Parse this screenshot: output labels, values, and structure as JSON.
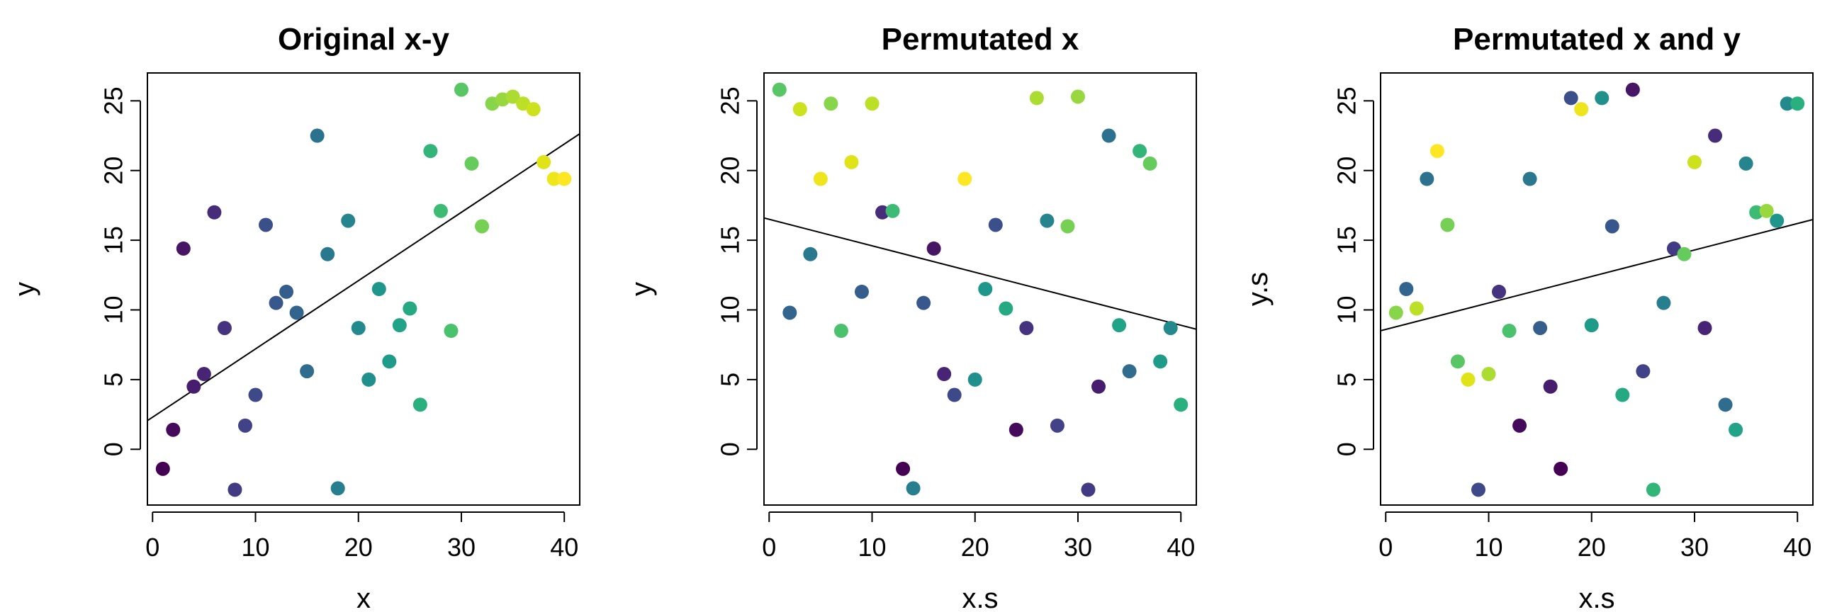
{
  "chart_data": [
    {
      "type": "scatter",
      "title": "Original x-y",
      "xlabel": "x",
      "ylabel": "y",
      "xlim": [
        -0.5,
        41.5
      ],
      "ylim": [
        -4,
        27
      ],
      "xticks": [
        0,
        10,
        20,
        30,
        40
      ],
      "yticks": [
        0,
        5,
        10,
        15,
        20,
        25
      ],
      "grid": false,
      "legend": "none",
      "fit_line": {
        "intercept": 2.3,
        "slope": 0.49
      },
      "points": [
        {
          "x": 1,
          "y": -1.4,
          "color": "#440154"
        },
        {
          "x": 2,
          "y": 1.4,
          "color": "#450a5b"
        },
        {
          "x": 3,
          "y": 14.4,
          "color": "#461564"
        },
        {
          "x": 4,
          "y": 4.5,
          "color": "#471e6d"
        },
        {
          "x": 5,
          "y": 5.4,
          "color": "#472574"
        },
        {
          "x": 6,
          "y": 17.0,
          "color": "#472c7a"
        },
        {
          "x": 7,
          "y": 8.7,
          "color": "#46337f"
        },
        {
          "x": 8,
          "y": -2.9,
          "color": "#433a84"
        },
        {
          "x": 9,
          "y": 1.7,
          "color": "#414287"
        },
        {
          "x": 10,
          "y": 3.9,
          "color": "#3e4989"
        },
        {
          "x": 11,
          "y": 16.1,
          "color": "#3b508b"
        },
        {
          "x": 12,
          "y": 10.5,
          "color": "#38578c"
        },
        {
          "x": 13,
          "y": 11.3,
          "color": "#355e8d"
        },
        {
          "x": 14,
          "y": 9.8,
          "color": "#32658e"
        },
        {
          "x": 15,
          "y": 5.6,
          "color": "#2f6c8e"
        },
        {
          "x": 16,
          "y": 22.5,
          "color": "#2c728e"
        },
        {
          "x": 17,
          "y": 14.0,
          "color": "#29788e"
        },
        {
          "x": 18,
          "y": -2.8,
          "color": "#277e8e"
        },
        {
          "x": 19,
          "y": 16.4,
          "color": "#25848e"
        },
        {
          "x": 20,
          "y": 8.7,
          "color": "#228a8d"
        },
        {
          "x": 21,
          "y": 5.0,
          "color": "#20908d"
        },
        {
          "x": 22,
          "y": 11.5,
          "color": "#1f968b"
        },
        {
          "x": 23,
          "y": 6.3,
          "color": "#1f9c89"
        },
        {
          "x": 24,
          "y": 8.9,
          "color": "#20a386"
        },
        {
          "x": 25,
          "y": 10.1,
          "color": "#24a982"
        },
        {
          "x": 26,
          "y": 3.2,
          "color": "#2aaf7f"
        },
        {
          "x": 27,
          "y": 21.4,
          "color": "#33b57a"
        },
        {
          "x": 28,
          "y": 17.1,
          "color": "#3dbb74"
        },
        {
          "x": 29,
          "y": 8.5,
          "color": "#4ac16d"
        },
        {
          "x": 30,
          "y": 25.8,
          "color": "#58c665"
        },
        {
          "x": 31,
          "y": 20.5,
          "color": "#66cb5d"
        },
        {
          "x": 32,
          "y": 16.0,
          "color": "#76d054"
        },
        {
          "x": 33,
          "y": 24.8,
          "color": "#87d54a"
        },
        {
          "x": 34,
          "y": 25.1,
          "color": "#98d83e"
        },
        {
          "x": 35,
          "y": 25.3,
          "color": "#aadc32"
        },
        {
          "x": 36,
          "y": 24.8,
          "color": "#bcdf27"
        },
        {
          "x": 37,
          "y": 24.4,
          "color": "#cde11d"
        },
        {
          "x": 38,
          "y": 20.6,
          "color": "#dfe318"
        },
        {
          "x": 39,
          "y": 19.4,
          "color": "#efe51c"
        },
        {
          "x": 40,
          "y": 19.4,
          "color": "#fde725"
        }
      ]
    },
    {
      "type": "scatter",
      "title": "Permutated x",
      "xlabel": "x.s",
      "ylabel": "y",
      "xlim": [
        -0.5,
        41.5
      ],
      "ylim": [
        -4,
        27
      ],
      "xticks": [
        0,
        10,
        20,
        30,
        40
      ],
      "yticks": [
        0,
        5,
        10,
        15,
        20,
        25
      ],
      "grid": false,
      "legend": "none",
      "fit_line": {
        "intercept": 16.5,
        "slope": -0.19
      },
      "points": [
        {
          "x": 13,
          "y": -1.4,
          "color": "#440154"
        },
        {
          "x": 24,
          "y": 1.4,
          "color": "#450a5b"
        },
        {
          "x": 16,
          "y": 14.4,
          "color": "#461564"
        },
        {
          "x": 32,
          "y": 4.5,
          "color": "#471e6d"
        },
        {
          "x": 17,
          "y": 5.4,
          "color": "#472574"
        },
        {
          "x": 11,
          "y": 17.0,
          "color": "#472c7a"
        },
        {
          "x": 25,
          "y": 8.7,
          "color": "#46337f"
        },
        {
          "x": 31,
          "y": -2.9,
          "color": "#433a84"
        },
        {
          "x": 28,
          "y": 1.7,
          "color": "#414287"
        },
        {
          "x": 18,
          "y": 3.9,
          "color": "#3e4989"
        },
        {
          "x": 22,
          "y": 16.1,
          "color": "#3b508b"
        },
        {
          "x": 15,
          "y": 10.5,
          "color": "#38578c"
        },
        {
          "x": 9,
          "y": 11.3,
          "color": "#355e8d"
        },
        {
          "x": 2,
          "y": 9.8,
          "color": "#32658e"
        },
        {
          "x": 35,
          "y": 5.6,
          "color": "#2f6c8e"
        },
        {
          "x": 33,
          "y": 22.5,
          "color": "#2c728e"
        },
        {
          "x": 4,
          "y": 14.0,
          "color": "#29788e"
        },
        {
          "x": 14,
          "y": -2.8,
          "color": "#277e8e"
        },
        {
          "x": 27,
          "y": 16.4,
          "color": "#25848e"
        },
        {
          "x": 39,
          "y": 8.7,
          "color": "#228a8d"
        },
        {
          "x": 20,
          "y": 5.0,
          "color": "#20908d"
        },
        {
          "x": 21,
          "y": 11.5,
          "color": "#1f968b"
        },
        {
          "x": 38,
          "y": 6.3,
          "color": "#1f9c89"
        },
        {
          "x": 34,
          "y": 8.9,
          "color": "#20a386"
        },
        {
          "x": 23,
          "y": 10.1,
          "color": "#24a982"
        },
        {
          "x": 40,
          "y": 3.2,
          "color": "#2aaf7f"
        },
        {
          "x": 36,
          "y": 21.4,
          "color": "#33b57a"
        },
        {
          "x": 12,
          "y": 17.1,
          "color": "#3dbb74"
        },
        {
          "x": 7,
          "y": 8.5,
          "color": "#4ac16d"
        },
        {
          "x": 1,
          "y": 25.8,
          "color": "#58c665"
        },
        {
          "x": 37,
          "y": 20.5,
          "color": "#66cb5d"
        },
        {
          "x": 29,
          "y": 16.0,
          "color": "#76d054"
        },
        {
          "x": 6,
          "y": 24.8,
          "color": "#87d54a"
        },
        {
          "x": 30,
          "y": 25.3,
          "color": "#98d83e"
        },
        {
          "x": 26,
          "y": 25.2,
          "color": "#aadc32"
        },
        {
          "x": 10,
          "y": 24.8,
          "color": "#bcdf27"
        },
        {
          "x": 3,
          "y": 24.4,
          "color": "#cde11d"
        },
        {
          "x": 8,
          "y": 20.6,
          "color": "#dfe318"
        },
        {
          "x": 5,
          "y": 19.4,
          "color": "#efe51c"
        },
        {
          "x": 19,
          "y": 19.4,
          "color": "#fde725"
        }
      ]
    },
    {
      "type": "scatter",
      "title": "Permutated x and y",
      "xlabel": "x.s",
      "ylabel": "y.s",
      "xlim": [
        -0.5,
        41.5
      ],
      "ylim": [
        -4,
        27
      ],
      "xticks": [
        0,
        10,
        20,
        30,
        40
      ],
      "yticks": [
        0,
        5,
        10,
        15,
        20,
        25
      ],
      "grid": false,
      "legend": "none",
      "fit_line": {
        "intercept": 8.6,
        "slope": 0.19
      },
      "points": [
        {
          "x": 17,
          "y": -1.4,
          "color": "#440154"
        },
        {
          "x": 13,
          "y": 1.7,
          "color": "#450a5b"
        },
        {
          "x": 24,
          "y": 25.8,
          "color": "#461564"
        },
        {
          "x": 16,
          "y": 4.5,
          "color": "#471e6d"
        },
        {
          "x": 31,
          "y": 8.7,
          "color": "#472574"
        },
        {
          "x": 32,
          "y": 22.5,
          "color": "#472c7a"
        },
        {
          "x": 11,
          "y": 11.3,
          "color": "#46337f"
        },
        {
          "x": 28,
          "y": 14.4,
          "color": "#433a84"
        },
        {
          "x": 25,
          "y": 5.6,
          "color": "#414287"
        },
        {
          "x": 9,
          "y": -2.9,
          "color": "#3e4989"
        },
        {
          "x": 18,
          "y": 25.2,
          "color": "#3b508b"
        },
        {
          "x": 22,
          "y": 16.0,
          "color": "#38578c"
        },
        {
          "x": 15,
          "y": 8.7,
          "color": "#355e8d"
        },
        {
          "x": 2,
          "y": 11.5,
          "color": "#32658e"
        },
        {
          "x": 33,
          "y": 3.2,
          "color": "#2f6c8e"
        },
        {
          "x": 4,
          "y": 19.4,
          "color": "#2c728e"
        },
        {
          "x": 14,
          "y": 19.4,
          "color": "#29788e"
        },
        {
          "x": 27,
          "y": 10.5,
          "color": "#277e8e"
        },
        {
          "x": 35,
          "y": 20.5,
          "color": "#25848e"
        },
        {
          "x": 39,
          "y": 24.8,
          "color": "#228a8d"
        },
        {
          "x": 21,
          "y": 25.2,
          "color": "#20908d"
        },
        {
          "x": 38,
          "y": 16.4,
          "color": "#1f968b"
        },
        {
          "x": 20,
          "y": 8.9,
          "color": "#1f9c89"
        },
        {
          "x": 34,
          "y": 1.4,
          "color": "#20a386"
        },
        {
          "x": 23,
          "y": 3.9,
          "color": "#24a982"
        },
        {
          "x": 40,
          "y": 24.8,
          "color": "#2aaf7f"
        },
        {
          "x": 26,
          "y": -2.9,
          "color": "#33b57a"
        },
        {
          "x": 36,
          "y": 17.0,
          "color": "#3dbb74"
        },
        {
          "x": 12,
          "y": 8.5,
          "color": "#4ac16d"
        },
        {
          "x": 7,
          "y": 6.3,
          "color": "#58c665"
        },
        {
          "x": 29,
          "y": 14.0,
          "color": "#66cb5d"
        },
        {
          "x": 6,
          "y": 16.1,
          "color": "#76d054"
        },
        {
          "x": 1,
          "y": 9.8,
          "color": "#87d54a"
        },
        {
          "x": 37,
          "y": 17.1,
          "color": "#98d83e"
        },
        {
          "x": 10,
          "y": 5.4,
          "color": "#aadc32"
        },
        {
          "x": 3,
          "y": 10.1,
          "color": "#bcdf27"
        },
        {
          "x": 30,
          "y": 20.6,
          "color": "#cde11d"
        },
        {
          "x": 8,
          "y": 5.0,
          "color": "#dfe318"
        },
        {
          "x": 19,
          "y": 24.4,
          "color": "#efe51c"
        },
        {
          "x": 5,
          "y": 21.4,
          "color": "#fde725"
        }
      ]
    }
  ]
}
